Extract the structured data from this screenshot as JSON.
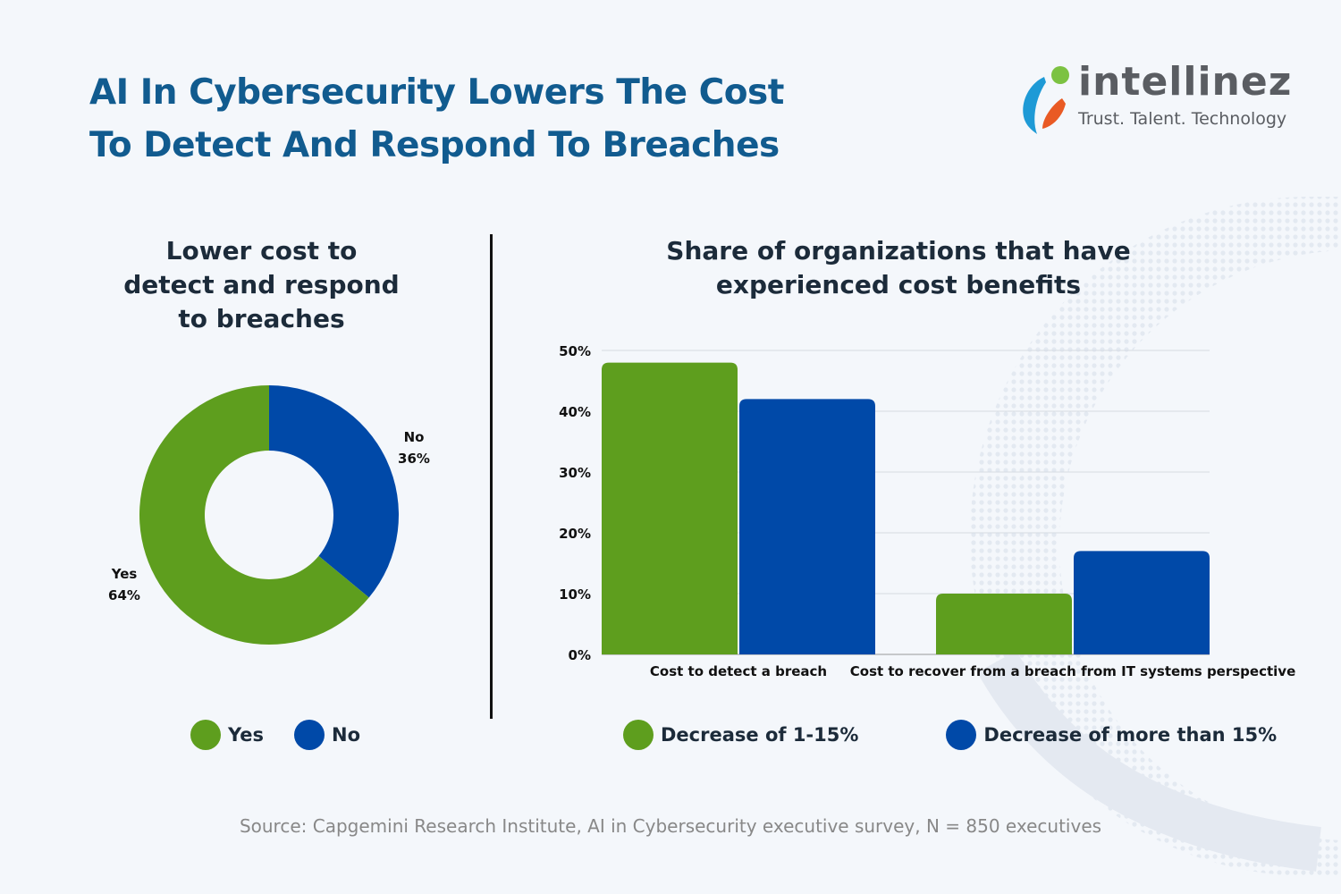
{
  "title_lines": [
    "AI In Cybersecurity Lowers The Cost",
    "To Detect And Respond To Breaches"
  ],
  "logo": {
    "word": "intellinez",
    "tagline": "Trust. Talent. Technology"
  },
  "colors": {
    "green": "#5e9e1e",
    "blue": "#0049a8",
    "title": "#115b8f"
  },
  "chart_data": [
    {
      "type": "pie",
      "donut": true,
      "title_lines": [
        "Lower cost to",
        "detect and respond",
        "to breaches"
      ],
      "slices": [
        {
          "label": "No",
          "value": 36,
          "color": "#0049a8"
        },
        {
          "label": "Yes",
          "value": 64,
          "color": "#5e9e1e"
        }
      ],
      "data_labels": [
        {
          "name": "No",
          "value": "36%"
        },
        {
          "name": "Yes",
          "value": "64%"
        }
      ],
      "legend": [
        {
          "label": "Yes",
          "color": "#5e9e1e"
        },
        {
          "label": "No",
          "color": "#0049a8"
        }
      ],
      "legend_placement": "bottom"
    },
    {
      "type": "bar",
      "title_lines": [
        "Share of organizations that have",
        "experienced cost benefits"
      ],
      "categories": [
        "Cost to detect  a breach",
        "Cost to recover from a breach from IT systems perspective"
      ],
      "series": [
        {
          "name": "Decrease of 1-15%",
          "values": [
            48,
            10
          ],
          "color": "#5e9e1e"
        },
        {
          "name": "Decrease of more than 15%",
          "values": [
            42,
            17
          ],
          "color": "#0049a8"
        }
      ],
      "ylim": [
        0,
        50
      ],
      "yticks": [
        "0%",
        "10%",
        "20%",
        "30%",
        "40%",
        "50%"
      ],
      "grid": true,
      "legend_placement": "bottom"
    }
  ],
  "source": "Source: Capgemini Research Institute, AI in Cybersecurity executive survey, N = 850 executives"
}
